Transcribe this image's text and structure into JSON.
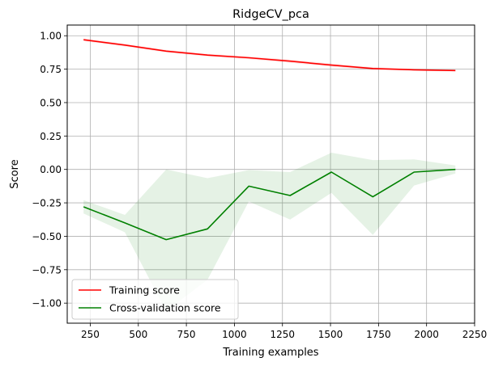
{
  "chart_data": {
    "type": "line",
    "title": "RidgeCV_pca",
    "xlabel": "Training examples",
    "ylabel": "Score",
    "xlim": [
      130,
      2250
    ],
    "ylim": [
      -1.15,
      1.08
    ],
    "xticks": [
      250,
      500,
      750,
      1000,
      1250,
      1500,
      1750,
      2000,
      2250
    ],
    "yticks": [
      1.0,
      0.75,
      0.5,
      0.25,
      0.0,
      -0.25,
      -0.5,
      -0.75,
      -1.0
    ],
    "xtick_labels": [
      "250",
      "500",
      "750",
      "1000",
      "1250",
      "1500",
      "1750",
      "2000",
      "2250"
    ],
    "ytick_labels": [
      "1.00",
      "0.75",
      "0.50",
      "0.25",
      "0.00",
      "−0.25",
      "−0.50",
      "−0.75",
      "−1.00"
    ],
    "grid": true,
    "legend_position": "lower-left",
    "x": [
      215,
      430,
      645,
      860,
      1075,
      1290,
      1505,
      1720,
      1935,
      2150
    ],
    "series": [
      {
        "name": "Training score",
        "color": "#ff0000",
        "fill_color": "#ff0000",
        "fill_opacity": 0.1,
        "values": [
          0.97,
          0.93,
          0.885,
          0.855,
          0.835,
          0.81,
          0.78,
          0.755,
          0.745,
          0.74
        ],
        "upper": [
          0.98,
          0.94,
          0.895,
          0.865,
          0.845,
          0.822,
          0.792,
          0.765,
          0.752,
          0.747
        ],
        "lower": [
          0.96,
          0.92,
          0.875,
          0.845,
          0.825,
          0.798,
          0.768,
          0.745,
          0.738,
          0.733
        ]
      },
      {
        "name": "Cross-validation score",
        "color": "#008000",
        "fill_color": "#008000",
        "fill_opacity": 0.1,
        "values": [
          -0.28,
          -0.4,
          -0.525,
          -0.445,
          -0.125,
          -0.195,
          -0.02,
          -0.205,
          -0.02,
          0.0
        ],
        "upper": [
          -0.23,
          -0.34,
          0.0,
          -0.065,
          -0.005,
          -0.02,
          0.125,
          0.07,
          0.075,
          0.03
        ],
        "lower": [
          -0.33,
          -0.47,
          -1.06,
          -0.825,
          -0.24,
          -0.375,
          -0.175,
          -0.49,
          -0.12,
          -0.03
        ]
      }
    ]
  }
}
